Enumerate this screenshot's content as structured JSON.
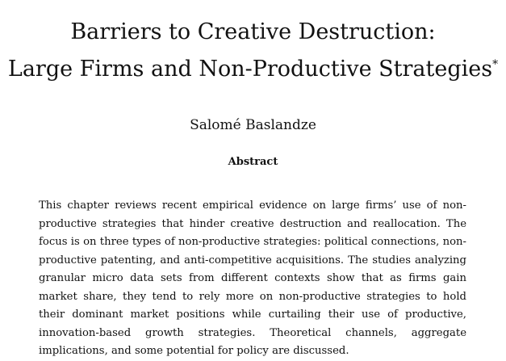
{
  "title": {
    "line1": "Barriers to Creative Destruction:",
    "line2": "Large Firms and Non-Productive Strategies",
    "footnote_mark": "*"
  },
  "author": "Salomé Baslandze",
  "abstract_heading": "Abstract",
  "abstract": "This chapter reviews recent empirical evidence on large firms’ use of non-productive strategies that hinder creative destruction and reallocation.  The focus is on three types of non-productive strategies: political connections, non-productive patenting, and anti-competitive acquisitions.  The studies analyzing granular micro data sets from different contexts show that as firms gain market share, they tend to rely more on non-productive strategies to hold their dominant market positions while curtailing their use of productive, innovation-based growth strategies.  Theoretical channels, aggregate implications, and some potential for policy are discussed."
}
